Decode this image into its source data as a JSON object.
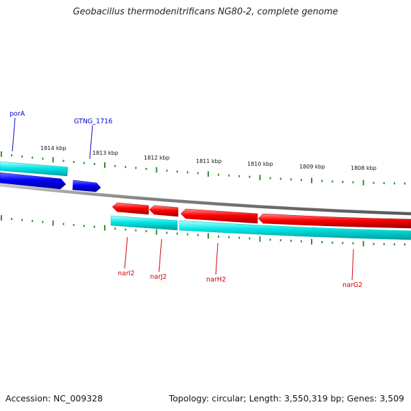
{
  "title": "Geobacillus thermodenitrificans NG80-2, complete genome",
  "footer": {
    "accession": "Accession: NC_009328",
    "summary": "Topology: circular; Length: 3,550,319 bp; Genes: 3,509"
  },
  "colors": {
    "title": "#222222",
    "backbone": "#808080",
    "ticks": "#2e8b2e",
    "forward_gene": "#0000ff",
    "reverse_gene": "#ff0000",
    "cds_band": "#00e5e5",
    "forward_label": "#0000cc",
    "reverse_label": "#cc0000"
  },
  "scale": {
    "labels": [
      "1814 kbp",
      "1813 kbp",
      "1812 kbp",
      "1811 kbp",
      "1810 kbp",
      "1809 kbp",
      "1808 kbp"
    ]
  },
  "genes": {
    "forward": [
      {
        "id": "porA",
        "label": "porA"
      },
      {
        "id": "gtng_1716",
        "label": "GTNG_1716"
      }
    ],
    "reverse": [
      {
        "id": "narI2",
        "label": "narI2"
      },
      {
        "id": "narJ2",
        "label": "narJ2"
      },
      {
        "id": "narH2",
        "label": "narH2"
      },
      {
        "id": "narG2",
        "label": "narG2"
      }
    ]
  }
}
